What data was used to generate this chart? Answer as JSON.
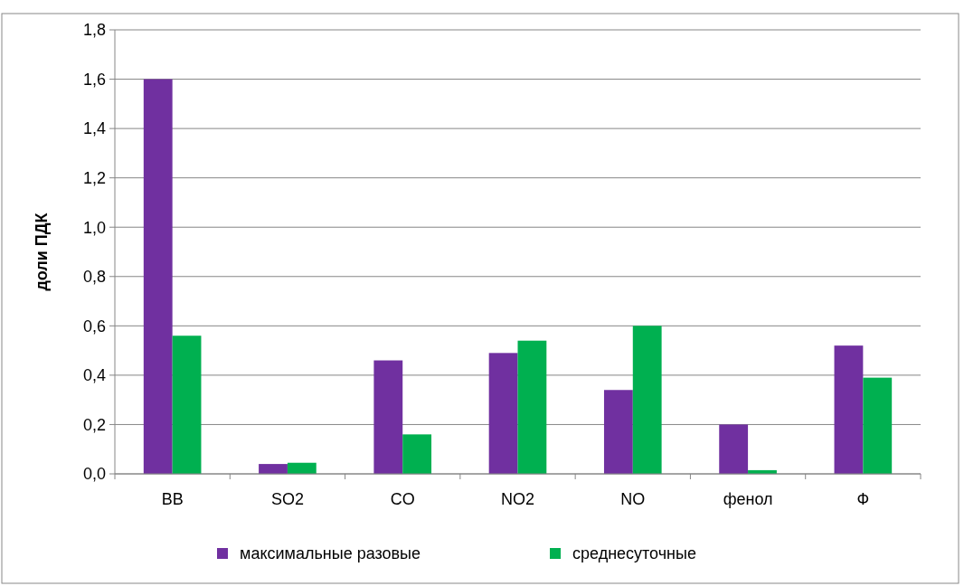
{
  "chart_data": {
    "type": "bar",
    "ylabel": "доли ПДК",
    "categories": [
      "ВВ",
      "SO2",
      "CO",
      "NO2",
      "NO",
      "фенол",
      "Ф"
    ],
    "series": [
      {
        "name": "максимальные разовые",
        "color": "#7030a0",
        "values": [
          1.6,
          0.04,
          0.46,
          0.49,
          0.34,
          0.2,
          0.52
        ]
      },
      {
        "name": "среднесуточные",
        "color": "#00b050",
        "values": [
          0.56,
          0.045,
          0.16,
          0.54,
          0.6,
          0.015,
          0.39
        ]
      }
    ],
    "ylim": [
      0,
      1.8
    ],
    "yticks": [
      {
        "value": 0,
        "label": "0,0"
      },
      {
        "value": 0.2,
        "label": "0,2"
      },
      {
        "value": 0.4,
        "label": "0,4"
      },
      {
        "value": 0.6,
        "label": "0,6"
      },
      {
        "value": 0.8,
        "label": "0,8"
      },
      {
        "value": 1.0,
        "label": "1,0"
      },
      {
        "value": 1.2,
        "label": "1,2"
      },
      {
        "value": 1.4,
        "label": "1,4"
      },
      {
        "value": 1.6,
        "label": "1,6"
      },
      {
        "value": 1.8,
        "label": "1,8"
      }
    ],
    "grid": "y",
    "legend": "bottom"
  }
}
